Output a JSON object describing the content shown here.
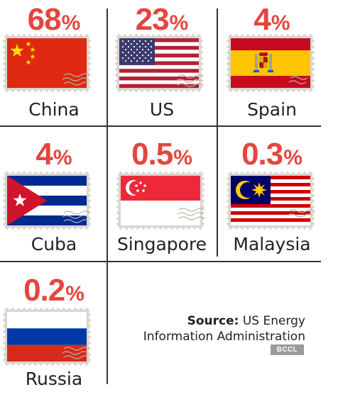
{
  "chart_data": {
    "type": "table",
    "unit": "%",
    "items": [
      {
        "country": "China",
        "value": "68",
        "flag": "china-flag-icon"
      },
      {
        "country": "US",
        "value": "23",
        "flag": "us-flag-icon"
      },
      {
        "country": "Spain",
        "value": "4",
        "flag": "spain-flag-icon"
      },
      {
        "country": "Cuba",
        "value": "4",
        "flag": "cuba-flag-icon"
      },
      {
        "country": "Singapore",
        "value": "0.5",
        "flag": "singapore-flag-icon"
      },
      {
        "country": "Malaysia",
        "value": "0.3",
        "flag": "malaysia-flag-icon"
      },
      {
        "country": "Russia",
        "value": "0.2",
        "flag": "russia-flag-icon"
      }
    ]
  },
  "source": {
    "label": "Source:",
    "text": " US Energy Information Administration"
  },
  "credit": "BCCL",
  "colors": {
    "accent": "#e4463f",
    "text": "#222222",
    "stamp_border": "#d9d6cf",
    "grid_line": "#333333",
    "credit_bg": "#9a9a9a"
  }
}
